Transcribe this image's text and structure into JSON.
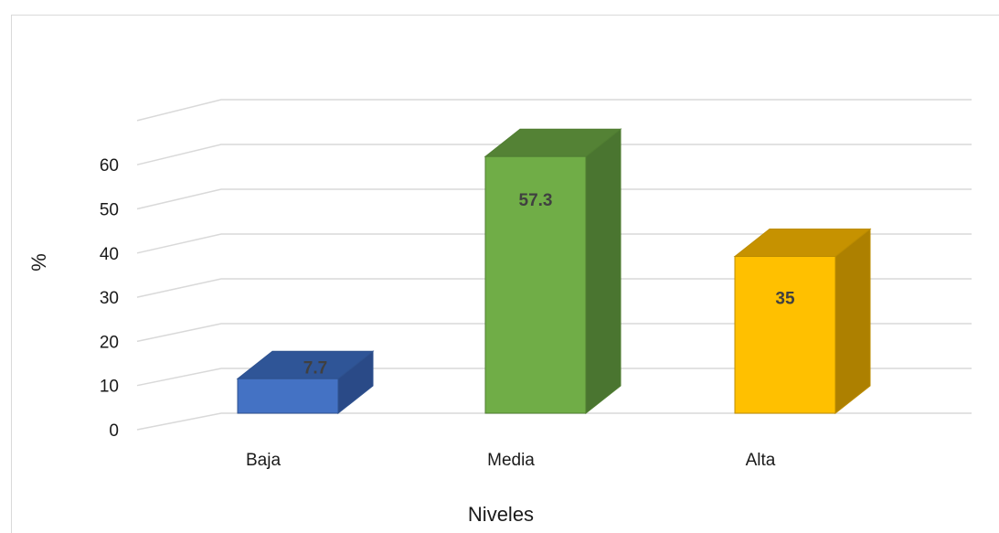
{
  "chart_data": {
    "type": "bar",
    "categories": [
      "Baja",
      "Media",
      "Alta"
    ],
    "values": [
      7.7,
      57.3,
      35
    ],
    "data_labels": [
      "7.7",
      "57.3",
      "35"
    ],
    "xlabel": "Niveles",
    "ylabel": "%",
    "ylim": [
      0,
      60
    ],
    "yticks": [
      "0",
      "10",
      "20",
      "30",
      "40",
      "50",
      "60"
    ],
    "grid": true,
    "legend": "none",
    "three_d": true,
    "colors": {
      "Baja": {
        "front": "#4472c4",
        "top": "#2f5597",
        "side": "#2a4a87",
        "edge": "#2f528f"
      },
      "Media": {
        "front": "#70ad47",
        "top": "#548235",
        "side": "#4a7530",
        "edge": "#507e32"
      },
      "Alta": {
        "front": "#ffc000",
        "top": "#c69200",
        "side": "#ad8000",
        "edge": "#bc8c00"
      }
    }
  }
}
